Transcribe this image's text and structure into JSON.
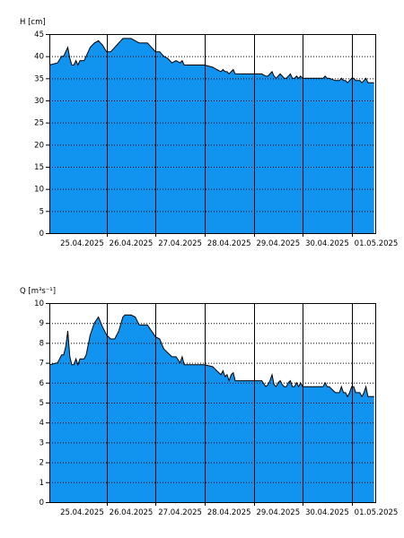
{
  "colors": {
    "fill": "#1094f0",
    "line": "#000000",
    "grid": "#000000",
    "background": "#ffffff"
  },
  "chart_data": [
    {
      "type": "area",
      "ylabel": "H [cm]",
      "ylim": [
        0,
        45
      ],
      "yticks": [
        0,
        5,
        10,
        15,
        20,
        25,
        30,
        35,
        40,
        45
      ],
      "xlim": [
        "2025-04-24T20:00",
        "2025-05-01T12:00"
      ],
      "xticks": [
        "25.04.2025",
        "26.04.2025",
        "27.04.2025",
        "28.04.2025",
        "29.04.2025",
        "30.04.2025",
        "01.05.2025"
      ],
      "vertical_lines": [
        "2025-04-26T00:00",
        "2025-04-27T00:00",
        "2025-04-28T00:00",
        "2025-04-29T00:00",
        "2025-04-30T00:00",
        "2025-05-01T00:00"
      ],
      "horizontal_grid": "dotted",
      "series": [
        {
          "x": [
            "2025-04-24T20:00",
            "2025-04-25T00:00",
            "2025-04-25T02:00",
            "2025-04-25T03:00",
            "2025-04-25T04:00",
            "2025-04-25T05:00",
            "2025-04-25T06:00",
            "2025-04-25T07:00",
            "2025-04-25T08:00",
            "2025-04-25T09:00",
            "2025-04-25T10:00",
            "2025-04-25T11:00",
            "2025-04-25T12:00",
            "2025-04-25T13:00",
            "2025-04-25T14:00",
            "2025-04-25T16:00",
            "2025-04-25T18:00",
            "2025-04-25T20:00",
            "2025-04-25T22:00",
            "2025-04-26T00:00",
            "2025-04-26T02:00",
            "2025-04-26T04:00",
            "2025-04-26T06:00",
            "2025-04-26T08:00",
            "2025-04-26T09:00",
            "2025-04-26T12:00",
            "2025-04-26T14:00",
            "2025-04-26T16:00",
            "2025-04-26T20:00",
            "2025-04-26T22:00",
            "2025-04-27T00:00",
            "2025-04-27T02:00",
            "2025-04-27T04:00",
            "2025-04-27T06:00",
            "2025-04-27T08:00",
            "2025-04-27T10:00",
            "2025-04-27T12:00",
            "2025-04-27T13:00",
            "2025-04-27T14:00",
            "2025-04-27T15:00",
            "2025-04-27T16:00",
            "2025-04-27T18:00",
            "2025-04-27T20:00",
            "2025-04-28T00:00",
            "2025-04-28T04:00",
            "2025-04-28T06:00",
            "2025-04-28T08:00",
            "2025-04-28T09:00",
            "2025-04-28T10:00",
            "2025-04-28T11:00",
            "2025-04-28T12:00",
            "2025-04-28T13:00",
            "2025-04-28T14:00",
            "2025-04-28T15:00",
            "2025-04-28T16:00",
            "2025-04-28T18:00",
            "2025-04-28T20:00",
            "2025-04-28T22:00",
            "2025-04-29T00:00",
            "2025-04-29T04:00",
            "2025-04-29T06:00",
            "2025-04-29T07:00",
            "2025-04-29T08:00",
            "2025-04-29T09:00",
            "2025-04-29T10:00",
            "2025-04-29T11:00",
            "2025-04-29T12:00",
            "2025-04-29T13:00",
            "2025-04-29T14:00",
            "2025-04-29T15:00",
            "2025-04-29T16:00",
            "2025-04-29T17:00",
            "2025-04-29T18:00",
            "2025-04-29T19:00",
            "2025-04-29T20:00",
            "2025-04-29T21:00",
            "2025-04-29T22:00",
            "2025-04-29T23:00",
            "2025-04-30T00:00",
            "2025-04-30T02:00",
            "2025-04-30T04:00",
            "2025-04-30T06:00",
            "2025-04-30T08:00",
            "2025-04-30T10:00",
            "2025-04-30T11:00",
            "2025-04-30T12:00",
            "2025-04-30T13:00",
            "2025-04-30T16:00",
            "2025-04-30T18:00",
            "2025-04-30T19:00",
            "2025-04-30T20:00",
            "2025-04-30T21:00",
            "2025-04-30T22:00",
            "2025-04-30T23:00",
            "2025-05-01T00:00",
            "2025-05-01T01:00",
            "2025-05-01T02:00",
            "2025-05-01T03:00",
            "2025-05-01T04:00",
            "2025-05-01T05:00",
            "2025-05-01T06:00",
            "2025-05-01T07:00",
            "2025-05-01T08:00",
            "2025-05-01T09:00",
            "2025-05-01T10:00",
            "2025-05-01T11:00"
          ],
          "values": [
            38,
            38.5,
            40,
            40,
            41,
            42,
            39.5,
            38,
            38,
            39,
            38,
            39,
            39,
            39,
            40,
            42,
            43,
            43.5,
            42.5,
            41,
            41,
            42,
            43,
            44,
            44,
            44,
            43.5,
            43,
            43,
            42,
            41,
            41,
            40,
            39.5,
            38.5,
            39,
            38.5,
            39,
            38,
            38,
            38,
            38,
            38,
            38,
            37.5,
            37,
            36.5,
            37,
            36.5,
            36.5,
            36,
            36.5,
            37,
            36,
            36,
            36,
            36,
            36,
            36,
            36,
            35.5,
            35.5,
            36,
            36.5,
            35.5,
            35,
            35.5,
            36,
            35.5,
            35,
            35,
            35.5,
            36,
            35,
            35,
            35.5,
            35,
            35.5,
            35,
            35,
            35,
            35,
            35,
            35,
            35.5,
            35,
            35,
            34.5,
            34.5,
            35,
            34.5,
            34.5,
            34,
            34.5,
            35,
            35,
            34.5,
            34.5,
            34.5,
            34,
            34.5,
            35,
            34,
            34,
            34,
            34
          ]
        }
      ]
    },
    {
      "type": "area",
      "ylabel": "Q [m³s⁻¹]",
      "ylim": [
        0,
        10
      ],
      "yticks": [
        0,
        1,
        2,
        3,
        4,
        5,
        6,
        7,
        8,
        9,
        10
      ],
      "xlim": [
        "2025-04-24T20:00",
        "2025-05-01T12:00"
      ],
      "xticks": [
        "25.04.2025",
        "26.04.2025",
        "27.04.2025",
        "28.04.2025",
        "29.04.2025",
        "30.04.2025",
        "01.05.2025"
      ],
      "vertical_lines": [
        "2025-04-26T00:00",
        "2025-04-27T00:00",
        "2025-04-28T00:00",
        "2025-04-29T00:00",
        "2025-04-30T00:00",
        "2025-05-01T00:00"
      ],
      "horizontal_grid": "dotted",
      "series": [
        {
          "x": [
            "2025-04-24T20:00",
            "2025-04-25T00:00",
            "2025-04-25T02:00",
            "2025-04-25T03:00",
            "2025-04-25T04:00",
            "2025-04-25T05:00",
            "2025-04-25T06:00",
            "2025-04-25T07:00",
            "2025-04-25T08:00",
            "2025-04-25T09:00",
            "2025-04-25T10:00",
            "2025-04-25T11:00",
            "2025-04-25T12:00",
            "2025-04-25T13:00",
            "2025-04-25T14:00",
            "2025-04-25T16:00",
            "2025-04-25T18:00",
            "2025-04-25T20:00",
            "2025-04-25T22:00",
            "2025-04-26T00:00",
            "2025-04-26T02:00",
            "2025-04-26T04:00",
            "2025-04-26T06:00",
            "2025-04-26T08:00",
            "2025-04-26T09:00",
            "2025-04-26T12:00",
            "2025-04-26T14:00",
            "2025-04-26T16:00",
            "2025-04-26T20:00",
            "2025-04-26T22:00",
            "2025-04-27T00:00",
            "2025-04-27T02:00",
            "2025-04-27T04:00",
            "2025-04-27T06:00",
            "2025-04-27T08:00",
            "2025-04-27T10:00",
            "2025-04-27T12:00",
            "2025-04-27T13:00",
            "2025-04-27T14:00",
            "2025-04-27T15:00",
            "2025-04-27T16:00",
            "2025-04-27T18:00",
            "2025-04-27T20:00",
            "2025-04-28T00:00",
            "2025-04-28T04:00",
            "2025-04-28T06:00",
            "2025-04-28T08:00",
            "2025-04-28T09:00",
            "2025-04-28T10:00",
            "2025-04-28T11:00",
            "2025-04-28T12:00",
            "2025-04-28T13:00",
            "2025-04-28T14:00",
            "2025-04-28T15:00",
            "2025-04-28T16:00",
            "2025-04-28T18:00",
            "2025-04-28T20:00",
            "2025-04-28T22:00",
            "2025-04-29T00:00",
            "2025-04-29T04:00",
            "2025-04-29T06:00",
            "2025-04-29T07:00",
            "2025-04-29T08:00",
            "2025-04-29T09:00",
            "2025-04-29T10:00",
            "2025-04-29T11:00",
            "2025-04-29T12:00",
            "2025-04-29T13:00",
            "2025-04-29T14:00",
            "2025-04-29T15:00",
            "2025-04-29T16:00",
            "2025-04-29T17:00",
            "2025-04-29T18:00",
            "2025-04-29T19:00",
            "2025-04-29T20:00",
            "2025-04-29T21:00",
            "2025-04-29T22:00",
            "2025-04-29T23:00",
            "2025-04-30T00:00",
            "2025-04-30T02:00",
            "2025-04-30T04:00",
            "2025-04-30T06:00",
            "2025-04-30T08:00",
            "2025-04-30T10:00",
            "2025-04-30T11:00",
            "2025-04-30T12:00",
            "2025-04-30T13:00",
            "2025-04-30T16:00",
            "2025-04-30T18:00",
            "2025-04-30T19:00",
            "2025-04-30T20:00",
            "2025-04-30T21:00",
            "2025-04-30T22:00",
            "2025-04-30T23:00",
            "2025-05-01T00:00",
            "2025-05-01T01:00",
            "2025-05-01T02:00",
            "2025-05-01T03:00",
            "2025-05-01T04:00",
            "2025-05-01T05:00",
            "2025-05-01T06:00",
            "2025-05-01T07:00",
            "2025-05-01T08:00",
            "2025-05-01T09:00",
            "2025-05-01T10:00",
            "2025-05-01T11:00"
          ],
          "values": [
            6.9,
            7.0,
            7.4,
            7.4,
            7.8,
            8.6,
            7.3,
            6.9,
            6.9,
            7.2,
            6.9,
            7.2,
            7.2,
            7.2,
            7.4,
            8.4,
            9.0,
            9.3,
            8.8,
            8.4,
            8.2,
            8.2,
            8.6,
            9.3,
            9.4,
            9.4,
            9.3,
            8.9,
            8.9,
            8.6,
            8.3,
            8.2,
            7.7,
            7.5,
            7.3,
            7.3,
            7.0,
            7.3,
            6.9,
            6.9,
            6.9,
            6.9,
            6.9,
            6.9,
            6.8,
            6.6,
            6.4,
            6.6,
            6.3,
            6.4,
            6.1,
            6.4,
            6.5,
            6.1,
            6.1,
            6.1,
            6.1,
            6.1,
            6.1,
            6.1,
            5.8,
            5.9,
            6.1,
            6.4,
            5.9,
            5.8,
            6.0,
            6.1,
            5.9,
            5.8,
            5.8,
            6.0,
            6.1,
            5.8,
            5.8,
            6.0,
            5.8,
            6.0,
            5.8,
            5.8,
            5.8,
            5.8,
            5.8,
            5.8,
            6.0,
            5.8,
            5.8,
            5.5,
            5.5,
            5.8,
            5.5,
            5.5,
            5.3,
            5.5,
            5.8,
            5.8,
            5.5,
            5.5,
            5.5,
            5.3,
            5.5,
            5.8,
            5.3,
            5.3,
            5.3,
            5.3
          ]
        }
      ]
    }
  ]
}
